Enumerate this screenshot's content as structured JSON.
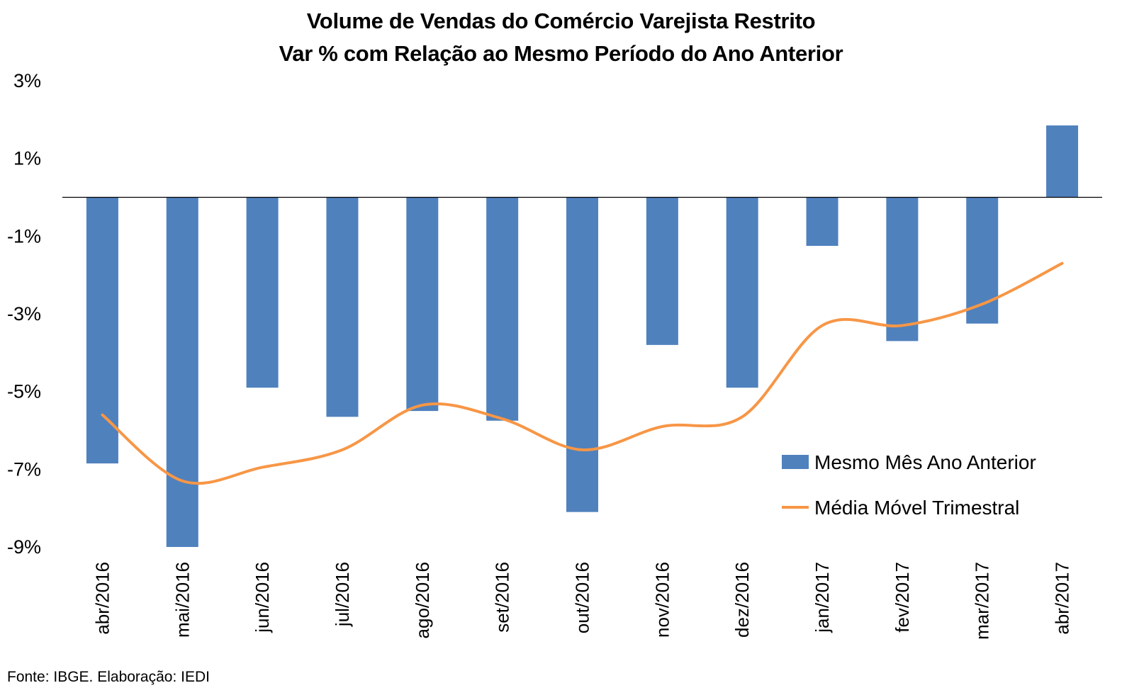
{
  "chart_data": {
    "type": "bar",
    "title": "Volume de Vendas do Comércio Varejista Restrito",
    "subtitle": "Var % com Relação ao Mesmo Período do Ano Anterior",
    "categories": [
      "abr/2016",
      "mai/2016",
      "jun/2016",
      "jul/2016",
      "ago/2016",
      "set/2016",
      "out/2016",
      "nov/2016",
      "dez/2016",
      "jan/2017",
      "fev/2017",
      "mar/2017",
      "abr/2017"
    ],
    "series": [
      {
        "name": "Mesmo Mês Ano Anterior",
        "type": "bar",
        "color": "#4f81bd",
        "values": [
          -6.85,
          -9.0,
          -4.9,
          -5.65,
          -5.5,
          -5.75,
          -8.1,
          -3.8,
          -4.9,
          -1.25,
          -3.7,
          -3.25,
          1.85
        ]
      },
      {
        "name": "Média Móvel Trimestral",
        "type": "line",
        "color": "#f79646",
        "values": [
          -5.6,
          -7.3,
          -6.95,
          -6.5,
          -5.35,
          -5.7,
          -6.5,
          -5.9,
          -5.65,
          -3.3,
          -3.3,
          -2.75,
          -1.7
        ]
      }
    ],
    "yticks": [
      "3%",
      "1%",
      "-1%",
      "-3%",
      "-5%",
      "-7%",
      "-9%"
    ],
    "ytick_values": [
      3,
      1,
      -1,
      -3,
      -5,
      -7,
      -9
    ],
    "ylim": [
      -9,
      3
    ],
    "xlabel": "",
    "ylabel": "",
    "grid": false,
    "legend_position": "lower-right"
  },
  "source": "Fonte: IBGE. Elaboração: IEDI"
}
